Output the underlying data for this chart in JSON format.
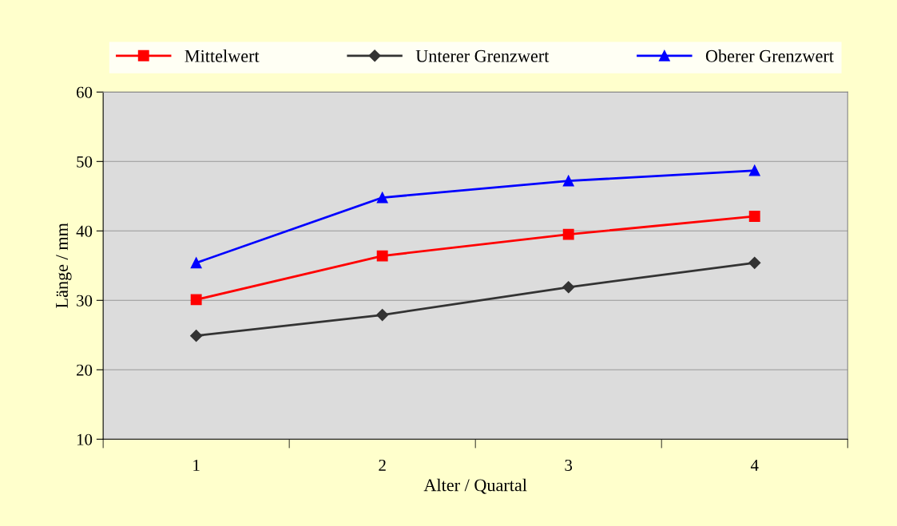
{
  "chart_data": {
    "type": "line",
    "xlabel": "Alter / Quartal",
    "ylabel": "Länge / mm",
    "categories": [
      "1",
      "2",
      "3",
      "4"
    ],
    "series": [
      {
        "name": "Mittelwert",
        "color": "#ff0000",
        "marker": "square",
        "values": [
          30.1,
          36.4,
          39.5,
          42.1
        ]
      },
      {
        "name": "Unterer Grenzwert",
        "color": "#333333",
        "marker": "diamond",
        "values": [
          24.9,
          27.9,
          31.9,
          35.4
        ]
      },
      {
        "name": "Oberer Grenzwert",
        "color": "#0000ff",
        "marker": "triangle",
        "values": [
          35.4,
          44.8,
          47.2,
          48.7
        ]
      }
    ],
    "ylim": [
      10,
      60
    ],
    "yticks": [
      10,
      20,
      30,
      40,
      50,
      60
    ],
    "grid": "y",
    "legend": "top"
  }
}
